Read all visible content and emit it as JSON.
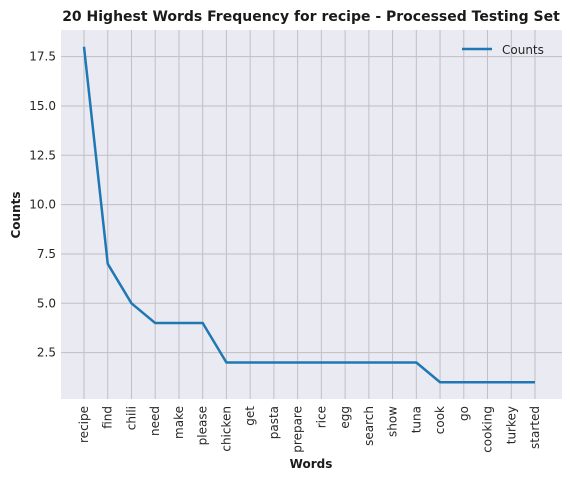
{
  "chart_data": {
    "type": "line",
    "title": "20 Highest Words Frequency for recipe - Processed Testing Set",
    "xlabel": "Words",
    "ylabel": "Counts",
    "categories": [
      "recipe",
      "find",
      "chili",
      "need",
      "make",
      "please",
      "chicken",
      "get",
      "pasta",
      "prepare",
      "rice",
      "egg",
      "search",
      "show",
      "tuna",
      "cook",
      "go",
      "cooking",
      "turkey",
      "started"
    ],
    "series": [
      {
        "name": "Counts",
        "values": [
          18,
          7,
          5,
          4,
          4,
          4,
          2,
          2,
          2,
          2,
          2,
          2,
          2,
          2,
          2,
          1,
          1,
          1,
          1,
          1
        ]
      }
    ],
    "yticks": [
      2.5,
      5.0,
      7.5,
      10.0,
      12.5,
      15.0,
      17.5
    ],
    "ylim": [
      0.15,
      18.85
    ],
    "grid": true,
    "legend_position": "top-right",
    "colors": {
      "line": "#1f77b4",
      "plot_bg": "#eaeaf2",
      "grid": "#bfbfc4"
    }
  }
}
